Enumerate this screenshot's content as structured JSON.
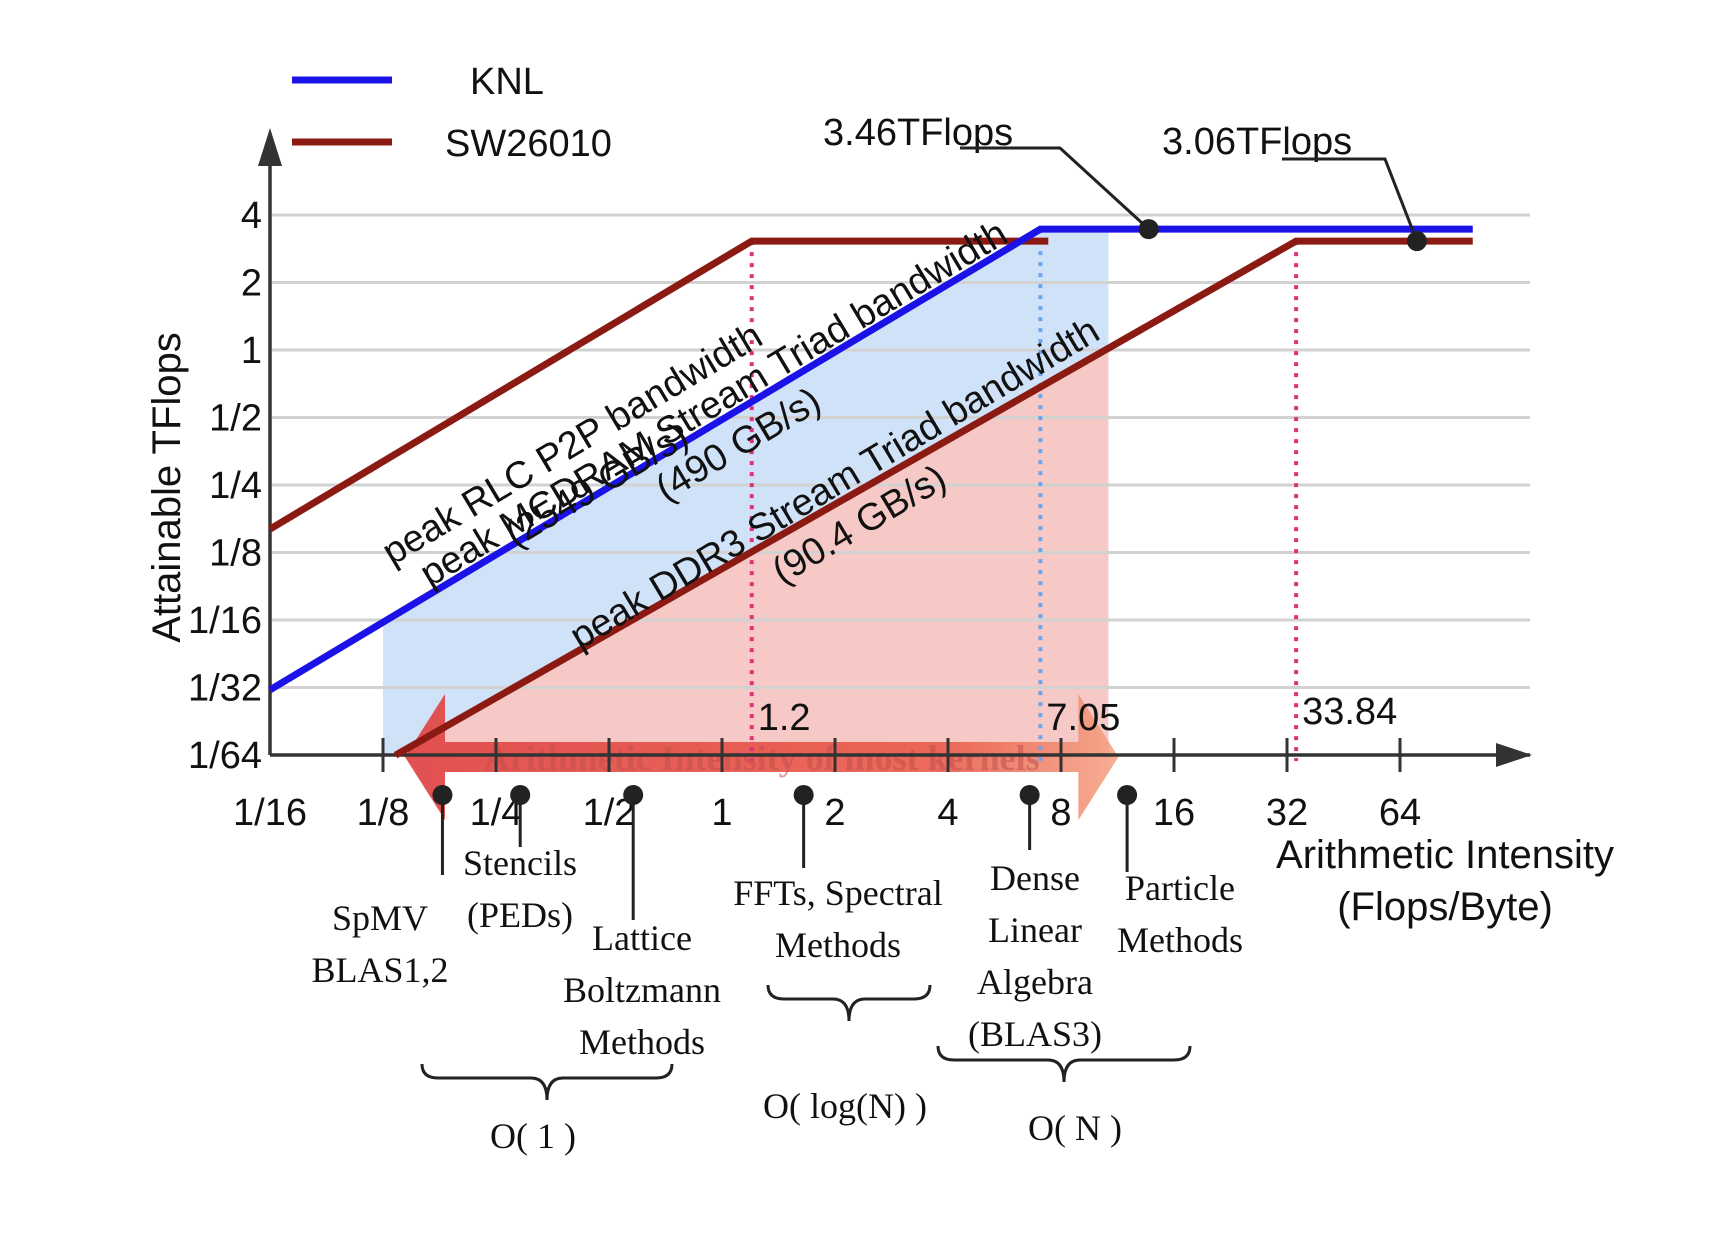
{
  "chart_data": {
    "type": "line",
    "title": "",
    "xlabel": "Arithmetic Intensity",
    "xlabel_unit": "(Flops/Byte)",
    "ylabel": "Attainable TFlops",
    "x_scale": "log2",
    "y_scale": "log2",
    "xlim": [
      0.0625,
      128
    ],
    "ylim": [
      0.015625,
      5
    ],
    "x_ticks": [
      {
        "value": 0.0625,
        "label": "1/16"
      },
      {
        "value": 0.125,
        "label": "1/8"
      },
      {
        "value": 0.25,
        "label": "1/4"
      },
      {
        "value": 0.5,
        "label": "1/2"
      },
      {
        "value": 1,
        "label": "1"
      },
      {
        "value": 2,
        "label": "2"
      },
      {
        "value": 4,
        "label": "4"
      },
      {
        "value": 8,
        "label": "8"
      },
      {
        "value": 16,
        "label": "16"
      },
      {
        "value": 32,
        "label": "32"
      },
      {
        "value": 64,
        "label": "64"
      }
    ],
    "y_ticks": [
      {
        "value": 0.015625,
        "label": "1/64"
      },
      {
        "value": 0.03125,
        "label": "1/32"
      },
      {
        "value": 0.0625,
        "label": "1/16"
      },
      {
        "value": 0.125,
        "label": "1/8"
      },
      {
        "value": 0.25,
        "label": "1/4"
      },
      {
        "value": 0.5,
        "label": "1/2"
      },
      {
        "value": 1,
        "label": "1"
      },
      {
        "value": 2,
        "label": "2"
      },
      {
        "value": 4,
        "label": "4"
      }
    ],
    "grid": true,
    "legend_position": "top-left",
    "series": [
      {
        "name": "KNL",
        "color": "#1a12e6",
        "points": [
          [
            0.0625,
            0.0305
          ],
          [
            7.05,
            3.46
          ],
          [
            100,
            3.46
          ]
        ]
      },
      {
        "name": "SW26010",
        "color": "#8b1a12",
        "segments": [
          [
            [
              0.0625,
              0.159
            ],
            [
              1.2,
              3.06
            ],
            [
              7.4,
              3.06
            ]
          ],
          [
            [
              0.135,
              0.0156
            ],
            [
              33.84,
              3.06
            ],
            [
              100,
              3.06
            ]
          ]
        ]
      }
    ],
    "roof_labels": [
      {
        "line1": "peak RLC P2P bandwidth",
        "line2": "(2549 GB/s)",
        "x": 0.42,
        "y": 0.33
      },
      {
        "line1": "peak MCDRAM Stream Triad bandwidth",
        "line2": "(490 GB/s)",
        "x": 1.0,
        "y": 0.5
      },
      {
        "line1": "peak DDR3 Stream Triad bandwidth",
        "line2": "(90.4 GB/s)",
        "x": 2.1,
        "y": 0.22
      }
    ],
    "peak_annotations": [
      {
        "label": "3.46TFlops",
        "x": 13.7,
        "y": 3.46
      },
      {
        "label": "3.06TFlops",
        "x": 71,
        "y": 3.06
      }
    ],
    "ridge_points": [
      {
        "label": "1.2",
        "x": 1.2,
        "color": "#e0307a"
      },
      {
        "label": "7.05",
        "x": 7.05,
        "color": "#6aa6ee"
      },
      {
        "label": "33.84",
        "x": 33.84,
        "color": "#e0307a"
      }
    ],
    "shaded_regions": [
      {
        "name": "knl-region",
        "x": [
          0.125,
          10.7
        ],
        "color": "#cfe2f8"
      },
      {
        "name": "sw-region",
        "x": [
          0.13,
          10.7
        ],
        "color": "#f6c9c7"
      }
    ],
    "kernel_arrow": {
      "label": "Arithmetic Intensity of most kernels",
      "x": [
        0.125,
        10.7
      ]
    },
    "kernels": [
      {
        "lines": [
          "SpMV",
          "BLAS1,2"
        ],
        "x": 0.18
      },
      {
        "lines": [
          "Stencils",
          "(PEDs)"
        ],
        "x": 0.29
      },
      {
        "lines": [
          "Lattice",
          "Boltzmann",
          "Methods"
        ],
        "x": 0.58
      },
      {
        "lines": [
          "FFTs, Spectral",
          "Methods"
        ],
        "x": 1.65
      },
      {
        "lines": [
          "Dense",
          "Linear",
          "Algebra",
          "(BLAS3)"
        ],
        "x": 6.6
      },
      {
        "lines": [
          "Particle",
          "Methods"
        ],
        "x": 12.0
      }
    ],
    "complexity_groups": [
      {
        "label": "O( 1 )"
      },
      {
        "label": "O( log(N) )"
      },
      {
        "label": "O( N )"
      }
    ]
  }
}
